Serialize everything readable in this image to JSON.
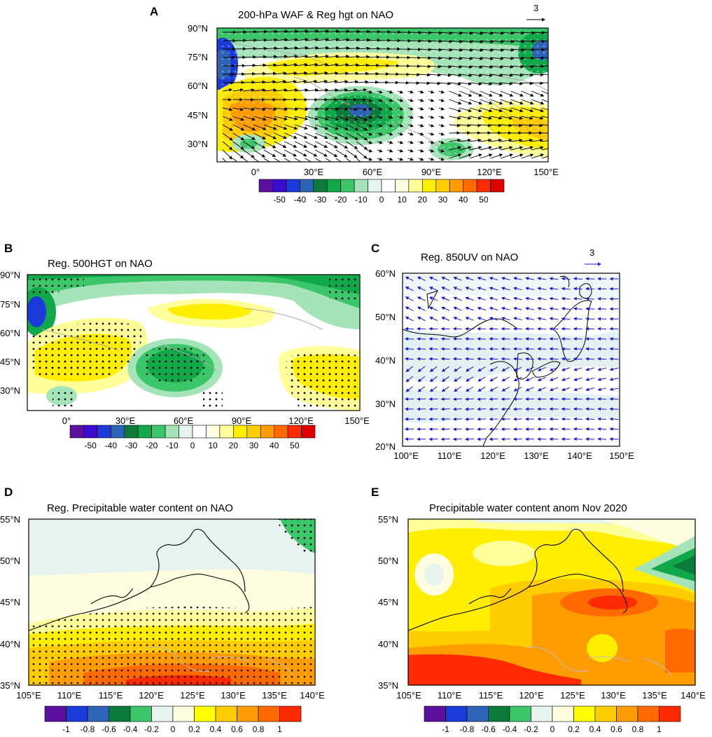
{
  "panels": {
    "A": {
      "letter": "A",
      "title": "200-hPa WAF & Reg hgt on NAO",
      "ref_vector": "3",
      "y_ticks": [
        "90°N",
        "75°N",
        "60°N",
        "45°N",
        "30°N"
      ],
      "x_ticks": [
        "0°",
        "30°E",
        "60°E",
        "90°E",
        "120°E",
        "150°E"
      ]
    },
    "B": {
      "letter": "B",
      "title": "Reg. 500HGT on NAO",
      "y_ticks": [
        "90°N",
        "75°N",
        "60°N",
        "45°N",
        "30°N"
      ],
      "x_ticks": [
        "0°",
        "30°E",
        "60°E",
        "90°E",
        "120°E",
        "150°E"
      ]
    },
    "C": {
      "letter": "C",
      "title": "Reg. 850UV on NAO",
      "ref_vector": "3",
      "y_ticks": [
        "60°N",
        "50°N",
        "40°N",
        "30°N",
        "20°N"
      ],
      "x_ticks": [
        "100°E",
        "110°E",
        "120°E",
        "130°E",
        "140°E",
        "150°E"
      ]
    },
    "D": {
      "letter": "D",
      "title": "Reg. Precipitable water content on NAO",
      "y_ticks": [
        "55°N",
        "50°N",
        "45°N",
        "40°N",
        "35°N"
      ],
      "x_ticks": [
        "105°E",
        "110°E",
        "115°E",
        "120°E",
        "125°E",
        "130°E",
        "135°E",
        "140°E"
      ]
    },
    "E": {
      "letter": "E",
      "title": "Precipitable water content anom Nov 2020",
      "y_ticks": [
        "55°N",
        "50°N",
        "45°N",
        "40°N",
        "35°N"
      ],
      "x_ticks": [
        "105°E",
        "110°E",
        "115°E",
        "120°E",
        "125°E",
        "130°E",
        "135°E",
        "140°E"
      ]
    }
  },
  "colorbar_hgt": {
    "labels": [
      "-50",
      "-40",
      "-30",
      "-20",
      "-10",
      "0",
      "10",
      "20",
      "30",
      "40",
      "50"
    ]
  },
  "colorbar_pwc": {
    "labels": [
      "-1",
      "-0.8",
      "-0.6",
      "-0.4",
      "-0.2",
      "0",
      "0.2",
      "0.4",
      "0.6",
      "0.8",
      "1"
    ]
  },
  "palette": [
    "#5b0f9e",
    "#3a0ccc",
    "#1a3bd9",
    "#2e63b5",
    "#0c7a3a",
    "#11a84a",
    "#3cc66a",
    "#a4e4b8",
    "#e6f3ee",
    "#ffffff",
    "#fffde0",
    "#ffff9a",
    "#ffee00",
    "#ffcc00",
    "#ff9d00",
    "#ff6a00",
    "#ff2a00",
    "#e00000"
  ],
  "chart_data": [
    {
      "panel": "A",
      "type": "heatmap",
      "title": "200-hPa WAF & Reg hgt on NAO",
      "xlim": [
        -20,
        150
      ],
      "ylim": [
        20,
        90
      ],
      "color_levels": [
        -50,
        -45,
        -40,
        -35,
        -30,
        -25,
        -20,
        -15,
        -10,
        -5,
        0,
        5,
        10,
        15,
        20,
        25,
        30,
        35,
        40,
        45,
        50
      ],
      "features": [
        {
          "kind": "negative",
          "lon": -15,
          "lat": 75,
          "value": -35
        },
        {
          "kind": "negative",
          "lon": 55,
          "lat": 45,
          "value": -35
        },
        {
          "kind": "negative",
          "lon": 100,
          "lat": 28,
          "value": -15
        },
        {
          "kind": "positive",
          "lon": 10,
          "lat": 50,
          "value": 30
        },
        {
          "kind": "positive",
          "lon": 60,
          "lat": 72,
          "value": 15
        },
        {
          "kind": "positive",
          "lon": 130,
          "lat": 42,
          "value": 20
        },
        {
          "kind": "negative",
          "lon": 145,
          "lat": 80,
          "value": -25
        }
      ]
    },
    {
      "panel": "B",
      "type": "heatmap",
      "title": "Reg. 500HGT on NAO",
      "xlim": [
        -20,
        150
      ],
      "ylim": [
        20,
        90
      ],
      "color_levels": [
        -50,
        -45,
        -40,
        -35,
        -30,
        -25,
        -20,
        -15,
        -10,
        -5,
        0,
        5,
        10,
        15,
        20,
        25,
        30,
        35,
        40,
        45,
        50
      ],
      "features": [
        {
          "kind": "negative",
          "lon": -15,
          "lat": 72,
          "value": -30
        },
        {
          "kind": "negative",
          "lon": 55,
          "lat": 45,
          "value": -25
        },
        {
          "kind": "negative",
          "lon": 5,
          "lat": 25,
          "value": -10
        },
        {
          "kind": "positive",
          "lon": 10,
          "lat": 50,
          "value": 15
        },
        {
          "kind": "positive",
          "lon": 65,
          "lat": 70,
          "value": 10
        },
        {
          "kind": "positive",
          "lon": 130,
          "lat": 40,
          "value": 15
        }
      ]
    },
    {
      "panel": "C",
      "type": "heatmap",
      "title": "Reg. 850UV on NAO",
      "xlim": [
        100,
        150
      ],
      "ylim": [
        20,
        60
      ],
      "reference_vector": 3,
      "features": [
        {
          "kind": "flow",
          "lat_band": [
            35,
            45
          ],
          "direction": "westward"
        },
        {
          "kind": "flow",
          "lat_band": [
            22,
            30
          ],
          "direction": "westward"
        }
      ]
    },
    {
      "panel": "D",
      "type": "heatmap",
      "title": "Reg. Precipitable water content on NAO",
      "xlim": [
        105,
        140
      ],
      "ylim": [
        35,
        55
      ],
      "color_levels": [
        -1,
        -0.8,
        -0.6,
        -0.4,
        -0.2,
        0,
        0.2,
        0.4,
        0.6,
        0.8,
        1
      ],
      "features": [
        {
          "kind": "gradient",
          "lat": 37,
          "value": 0.8
        },
        {
          "kind": "gradient",
          "lat": 40,
          "value": 0.4
        },
        {
          "kind": "gradient",
          "lat": 44,
          "value": 0.1
        },
        {
          "kind": "gradient",
          "lat": 50,
          "value": -0.1
        },
        {
          "kind": "negative",
          "lon": 139,
          "lat": 54,
          "value": -0.4
        }
      ]
    },
    {
      "panel": "E",
      "type": "heatmap",
      "title": "Precipitable water content anom Nov 2020",
      "xlim": [
        105,
        140
      ],
      "ylim": [
        35,
        55
      ],
      "color_levels": [
        -1,
        -0.8,
        -0.6,
        -0.4,
        -0.2,
        0,
        0.2,
        0.4,
        0.6,
        0.8,
        1
      ],
      "features": [
        {
          "kind": "positive",
          "lon": 112,
          "lat": 37,
          "value": 1
        },
        {
          "kind": "positive",
          "lon": 131,
          "lat": 45,
          "value": 1
        },
        {
          "kind": "positive",
          "lon": 125,
          "lat": 42,
          "value": 0.8
        },
        {
          "kind": "positive",
          "lon": 110,
          "lat": 47,
          "value": 0.3
        },
        {
          "kind": "negative",
          "lon": 138,
          "lat": 50,
          "value": -0.6
        }
      ]
    }
  ]
}
